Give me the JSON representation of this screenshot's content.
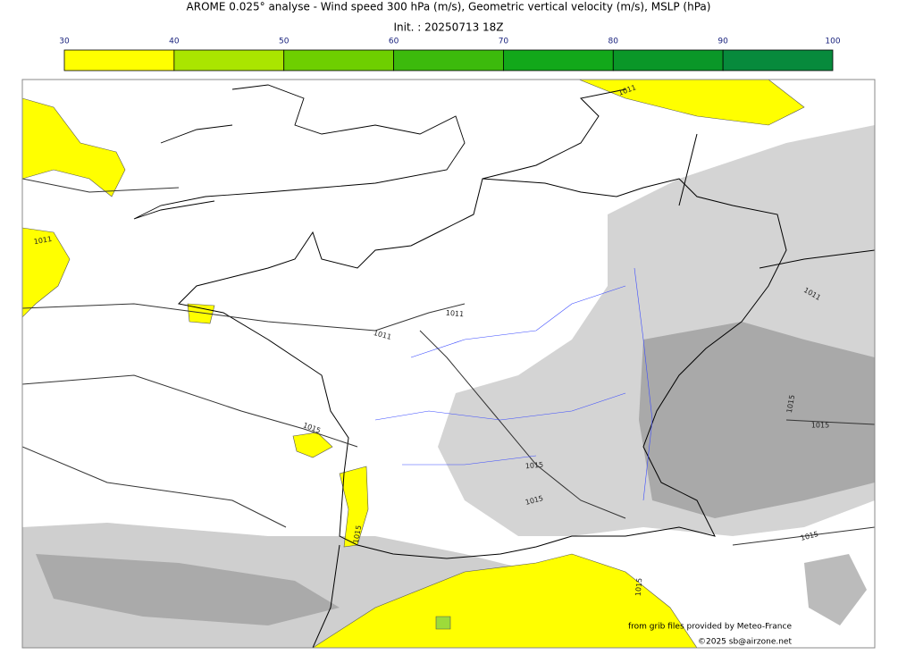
{
  "header": {
    "title": "AROME 0.025° analyse - Wind speed 300 hPa (m/s), Geometric vertical velocity (m/s), MSLP (hPa)",
    "subtitle": "Init. : 20250713 18Z"
  },
  "colorbar": {
    "ticks": [
      30,
      40,
      50,
      60,
      70,
      80,
      90,
      100
    ],
    "colors": [
      "#ffff00",
      "#aae500",
      "#6ecf00",
      "#3cba0c",
      "#12a81a",
      "#0a9728",
      "#078a3c",
      "#0a7a4e"
    ]
  },
  "map": {
    "contour_labels": [
      "1011",
      "1011",
      "1011",
      "1011",
      "1011",
      "1015",
      "1015",
      "1015",
      "1015",
      "1015",
      "1015",
      "1015",
      "1015"
    ]
  },
  "footer": {
    "source": "from grib files provided by Meteo-France",
    "copyright": "©2025 sb@airzone.net"
  }
}
